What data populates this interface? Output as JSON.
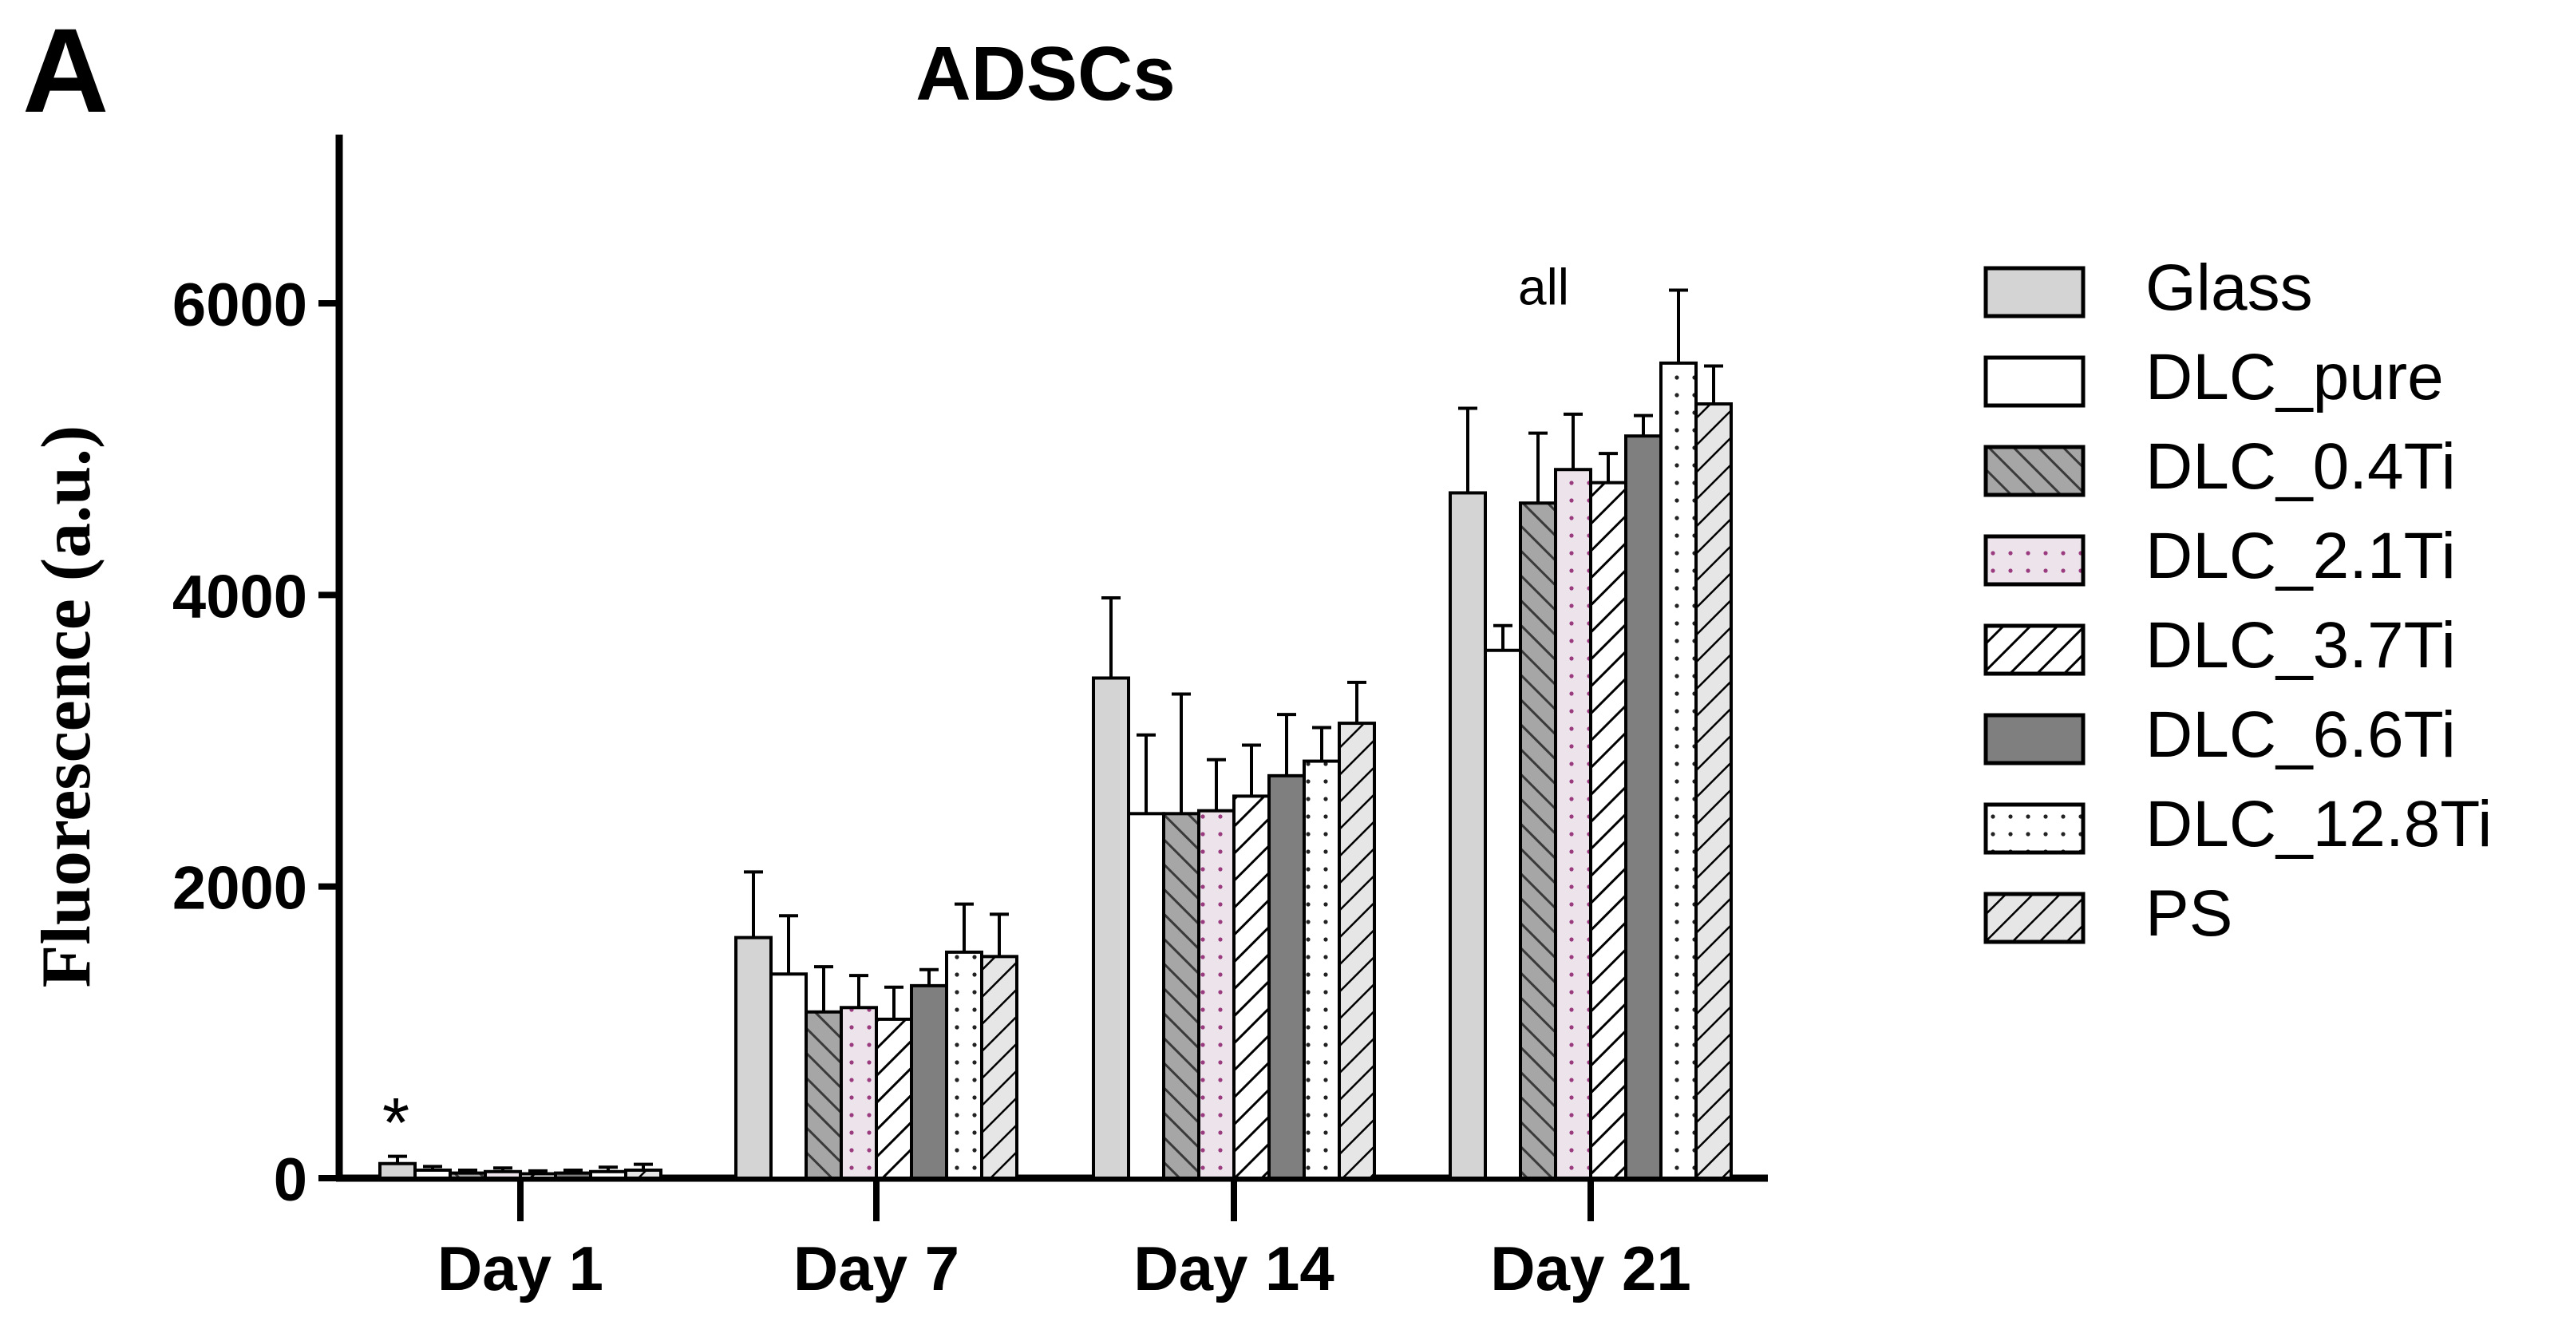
{
  "panel_label": "A",
  "chart_data": {
    "type": "bar",
    "title": "ADSCs",
    "xlabel": "",
    "ylabel": "Fluorescence (a.u.)",
    "ylim": [
      0,
      6500
    ],
    "yticks": [
      0,
      2000,
      4000,
      6000
    ],
    "categories": [
      "Day 1",
      "Day 7",
      "Day 14",
      "Day 21"
    ],
    "legend_position": "right",
    "grid": false,
    "series": [
      {
        "name": "Glass",
        "fill": "#d4d4d4",
        "pattern": "solid",
        "values": [
          100,
          1650,
          3430,
          4700
        ],
        "errors": [
          50,
          450,
          550,
          580
        ]
      },
      {
        "name": "DLC_pure",
        "fill": "#ffffff",
        "pattern": "solid",
        "values": [
          55,
          1400,
          2500,
          3620
        ],
        "errors": [
          25,
          400,
          540,
          170
        ]
      },
      {
        "name": "DLC_0.4Ti",
        "fill": "#a6a6a6",
        "pattern": "hatch",
        "values": [
          35,
          1140,
          2500,
          4630
        ],
        "errors": [
          20,
          310,
          820,
          480
        ]
      },
      {
        "name": "DLC_2.1Ti",
        "fill": "#ece4ea",
        "pattern": "dots",
        "values": [
          45,
          1170,
          2520,
          4860
        ],
        "errors": [
          25,
          220,
          350,
          380
        ]
      },
      {
        "name": "DLC_3.7Ti",
        "fill": "#ffffff",
        "pattern": "backhatch",
        "values": [
          30,
          1090,
          2620,
          4770
        ],
        "errors": [
          20,
          220,
          350,
          200
        ]
      },
      {
        "name": "DLC_6.6Ti",
        "fill": "#7f7f7f",
        "pattern": "solid",
        "values": [
          35,
          1320,
          2760,
          5090
        ],
        "errors": [
          20,
          110,
          420,
          140
        ]
      },
      {
        "name": "DLC_12.8Ti",
        "fill": "#ffffff",
        "pattern": "dots",
        "values": [
          45,
          1550,
          2860,
          5590
        ],
        "errors": [
          30,
          330,
          230,
          500
        ]
      },
      {
        "name": "PS",
        "fill": "#e6e6e6",
        "pattern": "backhatch",
        "values": [
          55,
          1520,
          3120,
          5310
        ],
        "errors": [
          40,
          290,
          280,
          260
        ]
      }
    ],
    "annotations": [
      {
        "text": "*",
        "category": "Day 1",
        "series_index": 0
      },
      {
        "text": "all",
        "category": "Day 21",
        "series_index": 0
      }
    ]
  }
}
